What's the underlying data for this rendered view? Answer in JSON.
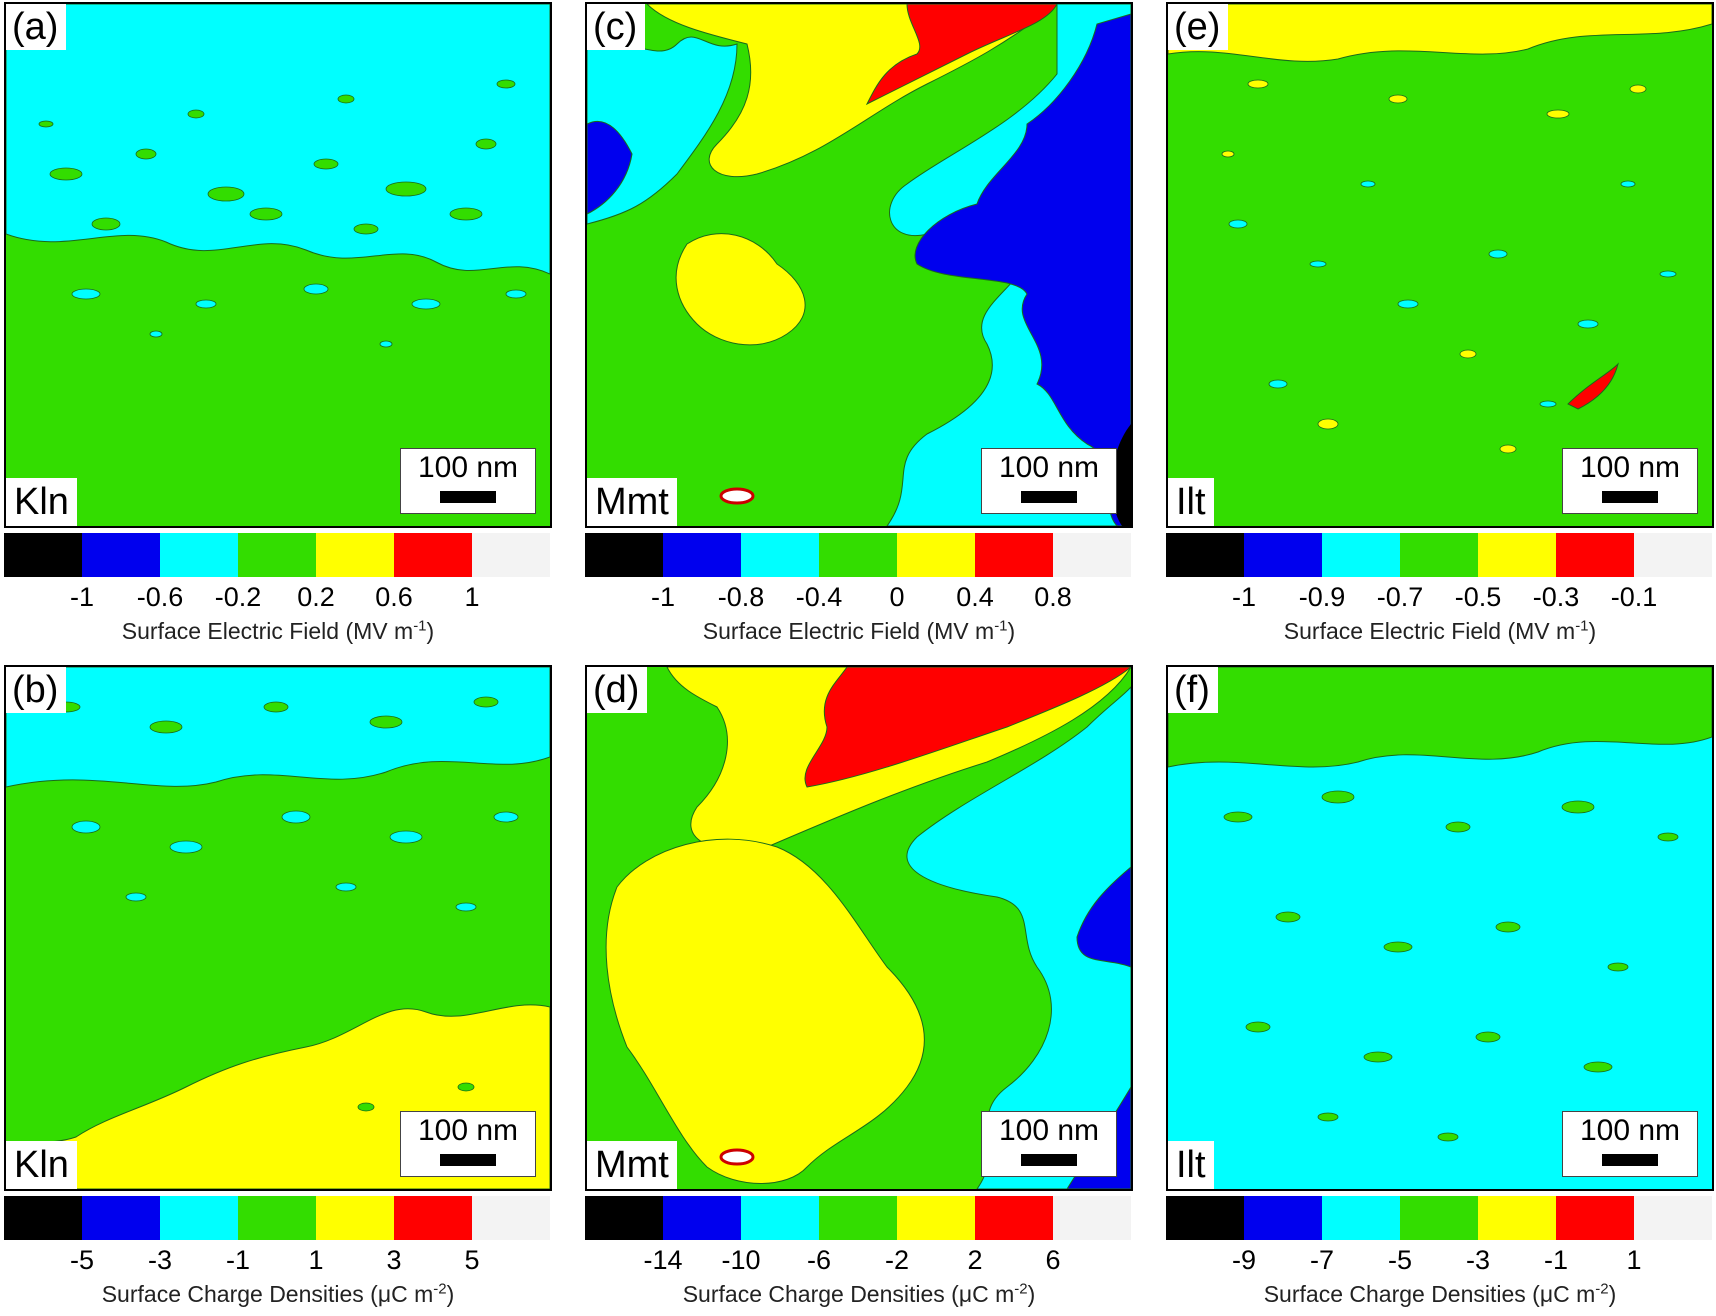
{
  "colorbar_colors": [
    "#000000",
    "#0000ee",
    "#00ffff",
    "#33dd00",
    "#ffff00",
    "#ff0000",
    "#f3f3f3"
  ],
  "scale_bar_label": "100 nm",
  "panels": [
    {
      "letter": "(a)",
      "mineral": "Kln",
      "ticks": [
        "-1",
        "-0.6",
        "-0.2",
        "0.2",
        "0.6",
        "1"
      ],
      "axis_label_main": "Surface Electric Field (MV m",
      "axis_label_sup": "-1",
      "axis_label_end": ")",
      "base_color": "#33dd00",
      "top_color": "#00ffff",
      "bottom_color": "#33dd00"
    },
    {
      "letter": "(c)",
      "mineral": "Mmt",
      "ticks": [
        "-1",
        "-0.8",
        "-0.4",
        "0",
        "0.4",
        "0.8"
      ],
      "axis_label_main": "Surface Electric Field (MV m",
      "axis_label_sup": "-1",
      "axis_label_end": ")",
      "base_color": "#33dd00"
    },
    {
      "letter": "(e)",
      "mineral": "Ilt",
      "ticks": [
        "-1",
        "-0.9",
        "-0.7",
        "-0.5",
        "-0.3",
        "-0.1"
      ],
      "axis_label_main": "Surface Electric Field (MV m",
      "axis_label_sup": "-1",
      "axis_label_end": ")",
      "base_color": "#33dd00"
    },
    {
      "letter": "(b)",
      "mineral": "Kln",
      "ticks": [
        "-5",
        "-3",
        "-1",
        "1",
        "3",
        "5"
      ],
      "axis_label_main": "Surface Charge Densities (μC m",
      "axis_label_sup": "-2",
      "axis_label_end": ")",
      "base_color": "#33dd00"
    },
    {
      "letter": "(d)",
      "mineral": "Mmt",
      "ticks": [
        "-14",
        "-10",
        "-6",
        "-2",
        "2",
        "6"
      ],
      "axis_label_main": "Surface Charge Densities (μC m",
      "axis_label_sup": "-2",
      "axis_label_end": ")",
      "base_color": "#33dd00"
    },
    {
      "letter": "(f)",
      "mineral": "Ilt",
      "ticks": [
        "-9",
        "-7",
        "-5",
        "-3",
        "-1",
        "1"
      ],
      "axis_label_main": "Surface Charge Densities (μC m",
      "axis_label_sup": "-2",
      "axis_label_end": ")",
      "base_color": "#00ffff"
    }
  ]
}
